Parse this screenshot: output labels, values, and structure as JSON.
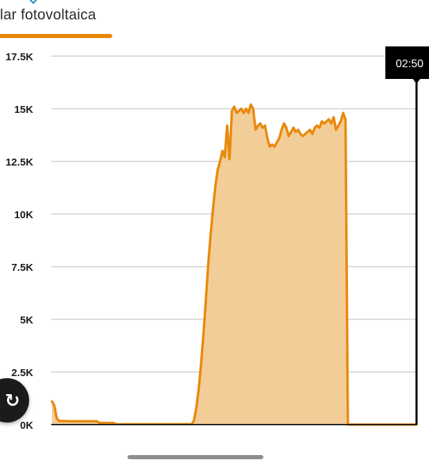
{
  "tab": {
    "label": "lar fotovoltaica",
    "accent_color": "#e8890c"
  },
  "tooltip": {
    "time": "02:50"
  },
  "fab": {
    "icon": "refresh-icon"
  },
  "chart_data": {
    "type": "area",
    "title": "",
    "xlabel": "",
    "ylabel": "",
    "ylim": [
      0,
      17500
    ],
    "y_ticks": [
      "17.5K",
      "15K",
      "12.5K",
      "10K",
      "7.5K",
      "5K",
      "2.5K",
      "0K"
    ],
    "grid": true,
    "line_color": "#e8890c",
    "fill_color": "#f3cd98",
    "series": [
      {
        "values": [
          1100,
          900,
          300,
          180,
          170,
          170,
          170,
          160,
          160,
          160,
          160,
          160,
          160,
          160,
          160,
          160,
          160,
          160,
          160,
          160,
          80,
          80,
          80,
          80,
          80,
          80,
          80,
          20,
          20,
          20,
          20,
          20,
          20,
          20,
          20,
          20,
          20,
          20,
          20,
          20,
          20,
          20,
          20,
          20,
          20,
          20,
          20,
          20,
          20,
          20,
          20,
          20,
          20,
          20,
          20,
          20,
          20,
          20,
          20,
          20,
          200,
          800,
          1700,
          2900,
          4300,
          5900,
          7600,
          9000,
          10200,
          11300,
          12100,
          12500,
          13000,
          12700,
          14200,
          12600,
          14900,
          15100,
          14800,
          14900,
          15000,
          14800,
          15000,
          14800,
          15200,
          15000,
          14000,
          14200,
          14300,
          14100,
          14200,
          13600,
          13200,
          13300,
          13200,
          13400,
          13600,
          14000,
          14300,
          14100,
          13700,
          13900,
          14100,
          13900,
          14000,
          13800,
          13700,
          13800,
          13900,
          14000,
          13800,
          14100,
          14200,
          14100,
          14400,
          14300,
          14400,
          14500,
          14300,
          14600,
          14000,
          14200,
          14400,
          14800,
          14500,
          0,
          0,
          0,
          0,
          0,
          0,
          0,
          0,
          0,
          0,
          0,
          0,
          0,
          0,
          0,
          0,
          0,
          0,
          0,
          0,
          0,
          0,
          0,
          0,
          0,
          0,
          0,
          0,
          0,
          0
        ]
      }
    ]
  }
}
